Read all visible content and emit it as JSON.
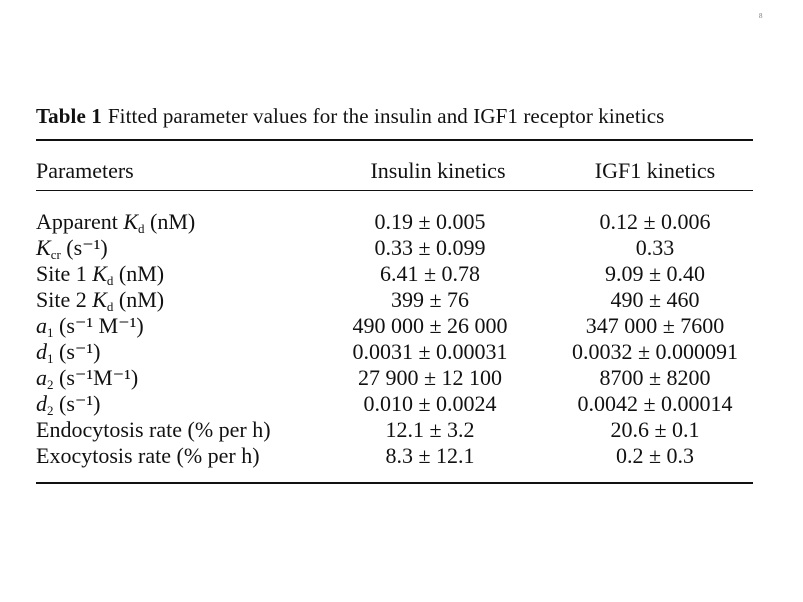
{
  "page_mark": "8",
  "caption": {
    "label": "Table 1",
    "text": "Fitted parameter values for the insulin and IGF1 receptor kinetics"
  },
  "headers": [
    "Parameters",
    "Insulin kinetics",
    "IGF1 kinetics"
  ],
  "rows": [
    {
      "param_pre": "Apparent ",
      "param_sym": "K",
      "param_sub": "d",
      "param_post": " (nM)",
      "insulin": "0.19 ± 0.005",
      "igf1": "0.12 ± 0.006"
    },
    {
      "param_pre": "",
      "param_sym": "K",
      "param_sub": "cr",
      "param_post": " (s⁻¹)",
      "insulin": "0.33 ± 0.099",
      "igf1": "0.33"
    },
    {
      "param_pre": "Site 1 ",
      "param_sym": "K",
      "param_sub": "d",
      "param_post": " (nM)",
      "insulin": "6.41 ± 0.78",
      "igf1": "9.09 ± 0.40"
    },
    {
      "param_pre": "Site 2 ",
      "param_sym": "K",
      "param_sub": "d",
      "param_post": " (nM)",
      "insulin": "399 ± 76",
      "igf1": "490 ± 460"
    },
    {
      "param_pre": "",
      "param_sym": "a",
      "param_sub": "1",
      "param_post": " (s⁻¹ M⁻¹)",
      "insulin": "490 000 ± 26 000",
      "igf1": "347 000 ± 7600"
    },
    {
      "param_pre": "",
      "param_sym": "d",
      "param_sub": "1",
      "param_post": " (s⁻¹)",
      "insulin": "0.0031 ± 0.00031",
      "igf1": "0.0032 ± 0.000091"
    },
    {
      "param_pre": "",
      "param_sym": "a",
      "param_sub": "2",
      "param_post": " (s⁻¹M⁻¹)",
      "insulin": "27 900 ± 12 100",
      "igf1": "8700 ± 8200"
    },
    {
      "param_pre": "",
      "param_sym": "d",
      "param_sub": "2",
      "param_post": " (s⁻¹)",
      "insulin": "0.010 ± 0.0024",
      "igf1": "0.0042 ± 0.00014"
    },
    {
      "param_pre": "Endocytosis rate (% per h)",
      "param_sym": "",
      "param_sub": "",
      "param_post": "",
      "insulin": "12.1 ± 3.2",
      "igf1": "20.6 ± 0.1"
    },
    {
      "param_pre": "Exocytosis rate (% per h)",
      "param_sym": "",
      "param_sub": "",
      "param_post": "",
      "insulin": "8.3 ± 12.1",
      "igf1": "0.2 ± 0.3"
    }
  ]
}
